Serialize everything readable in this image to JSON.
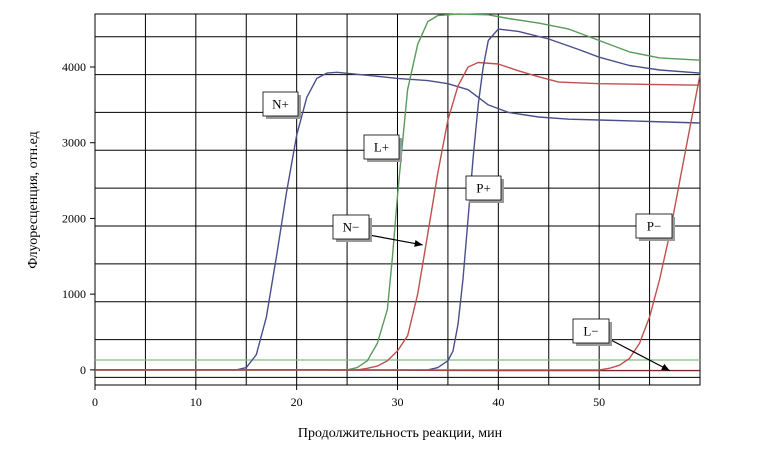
{
  "chart_data": {
    "type": "line",
    "xlabel": "Продолжительность реакции, мин",
    "ylabel": "Флуоресценция, отн.ед",
    "xlim": [
      0,
      60
    ],
    "ylim": [
      -200,
      4700
    ],
    "x_ticks": [
      0,
      10,
      20,
      30,
      40,
      50
    ],
    "y_ticks": [
      0,
      1000,
      2000,
      3000,
      4000
    ],
    "grid": true,
    "threshold": {
      "color": "#7fbf7f",
      "y": 130
    },
    "series": [
      {
        "name": "N+",
        "color": "#4a4f8c",
        "points": [
          [
            0,
            0
          ],
          [
            14,
            0
          ],
          [
            15,
            30
          ],
          [
            16,
            200
          ],
          [
            17,
            700
          ],
          [
            18,
            1500
          ],
          [
            19,
            2350
          ],
          [
            20,
            3100
          ],
          [
            21,
            3600
          ],
          [
            22,
            3850
          ],
          [
            23,
            3920
          ],
          [
            24,
            3930
          ],
          [
            27,
            3890
          ],
          [
            30,
            3850
          ],
          [
            33,
            3820
          ],
          [
            35,
            3780
          ],
          [
            37,
            3700
          ],
          [
            39,
            3500
          ],
          [
            41,
            3400
          ],
          [
            44,
            3340
          ],
          [
            47,
            3310
          ],
          [
            50,
            3300
          ],
          [
            55,
            3280
          ],
          [
            60,
            3260
          ]
        ]
      },
      {
        "name": "N−",
        "color": "#c0504d",
        "points": [
          [
            0,
            0
          ],
          [
            26,
            0
          ],
          [
            27,
            20
          ],
          [
            28,
            50
          ],
          [
            29,
            120
          ],
          [
            30,
            250
          ],
          [
            31,
            450
          ],
          [
            32,
            1000
          ],
          [
            33,
            1800
          ],
          [
            34,
            2600
          ],
          [
            35,
            3300
          ],
          [
            36,
            3750
          ],
          [
            37,
            4000
          ],
          [
            38,
            4060
          ],
          [
            40,
            4040
          ],
          [
            42,
            3950
          ],
          [
            44,
            3870
          ],
          [
            46,
            3800
          ],
          [
            50,
            3780
          ],
          [
            55,
            3770
          ],
          [
            60,
            3760
          ]
        ]
      },
      {
        "name": "L+",
        "color": "#5a9a5a",
        "points": [
          [
            0,
            0
          ],
          [
            25,
            0
          ],
          [
            26,
            30
          ],
          [
            27,
            120
          ],
          [
            28,
            350
          ],
          [
            29,
            800
          ],
          [
            29.5,
            1500
          ],
          [
            30,
            2300
          ],
          [
            30.5,
            3000
          ],
          [
            31,
            3700
          ],
          [
            32,
            4300
          ],
          [
            33,
            4600
          ],
          [
            34,
            4680
          ],
          [
            36,
            4700
          ],
          [
            39,
            4690
          ],
          [
            41,
            4640
          ],
          [
            44,
            4580
          ],
          [
            47,
            4500
          ],
          [
            50,
            4350
          ],
          [
            53,
            4200
          ],
          [
            56,
            4120
          ],
          [
            60,
            4090
          ]
        ]
      },
      {
        "name": "L−",
        "color": "#7a2a2a",
        "points": [
          [
            0,
            0
          ],
          [
            20,
            0
          ],
          [
            40,
            -10
          ],
          [
            57,
            -10
          ],
          [
            60,
            -10
          ]
        ]
      },
      {
        "name": "P+",
        "color": "#4a4f8c",
        "points": [
          [
            0,
            0
          ],
          [
            33,
            0
          ],
          [
            34,
            30
          ],
          [
            35,
            120
          ],
          [
            35.5,
            250
          ],
          [
            36,
            600
          ],
          [
            36.5,
            1200
          ],
          [
            37,
            2000
          ],
          [
            37.5,
            2800
          ],
          [
            38,
            3500
          ],
          [
            38.5,
            4000
          ],
          [
            39,
            4350
          ],
          [
            40,
            4500
          ],
          [
            42,
            4470
          ],
          [
            45,
            4370
          ],
          [
            48,
            4230
          ],
          [
            50,
            4130
          ],
          [
            53,
            4020
          ],
          [
            56,
            3960
          ],
          [
            60,
            3920
          ]
        ]
      },
      {
        "name": "P−",
        "color": "#c0504d",
        "points": [
          [
            0,
            0
          ],
          [
            50,
            0
          ],
          [
            51,
            20
          ],
          [
            52,
            60
          ],
          [
            53,
            150
          ],
          [
            54,
            350
          ],
          [
            55,
            700
          ],
          [
            56,
            1200
          ],
          [
            57,
            1800
          ],
          [
            58,
            2500
          ],
          [
            59,
            3200
          ],
          [
            60,
            3900
          ]
        ]
      }
    ],
    "annotations": [
      {
        "text": "N+",
        "series": "N+",
        "arrow_to": null
      },
      {
        "text": "L+",
        "series": "L+",
        "arrow_to": null
      },
      {
        "text": "P+",
        "series": "P+",
        "arrow_to": null
      },
      {
        "text": "N−",
        "series": "N−",
        "arrow_to": [
          32.5,
          1650
        ]
      },
      {
        "text": "P−",
        "series": "P−",
        "arrow_to": null
      },
      {
        "text": "L−",
        "series": "L−",
        "arrow_to": [
          57,
          -10
        ]
      }
    ]
  }
}
